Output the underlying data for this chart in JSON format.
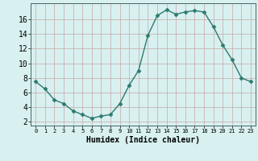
{
  "x": [
    0,
    1,
    2,
    3,
    4,
    5,
    6,
    7,
    8,
    9,
    10,
    11,
    12,
    13,
    14,
    15,
    16,
    17,
    18,
    19,
    20,
    21,
    22,
    23
  ],
  "y": [
    7.5,
    6.5,
    5.0,
    4.5,
    3.5,
    3.0,
    2.5,
    2.8,
    3.0,
    4.5,
    7.0,
    9.0,
    13.8,
    16.5,
    17.3,
    16.7,
    17.0,
    17.2,
    17.0,
    15.0,
    12.5,
    10.5,
    8.0,
    7.5
  ],
  "line_color": "#2d7a6e",
  "marker": "D",
  "markersize": 2.5,
  "linewidth": 1.0,
  "bg_color": "#d8f0f0",
  "grid_color": "#c8a8a8",
  "xlabel": "Humidex (Indice chaleur)",
  "xlabel_fontsize": 7,
  "xlim": [
    -0.5,
    23.5
  ],
  "ylim": [
    1.5,
    18.2
  ],
  "yticks": [
    2,
    4,
    6,
    8,
    10,
    12,
    14,
    16
  ],
  "xticks": [
    0,
    1,
    2,
    3,
    4,
    5,
    6,
    7,
    8,
    9,
    10,
    11,
    12,
    13,
    14,
    15,
    16,
    17,
    18,
    19,
    20,
    21,
    22,
    23
  ],
  "ytick_fontsize": 7,
  "xtick_fontsize": 5
}
